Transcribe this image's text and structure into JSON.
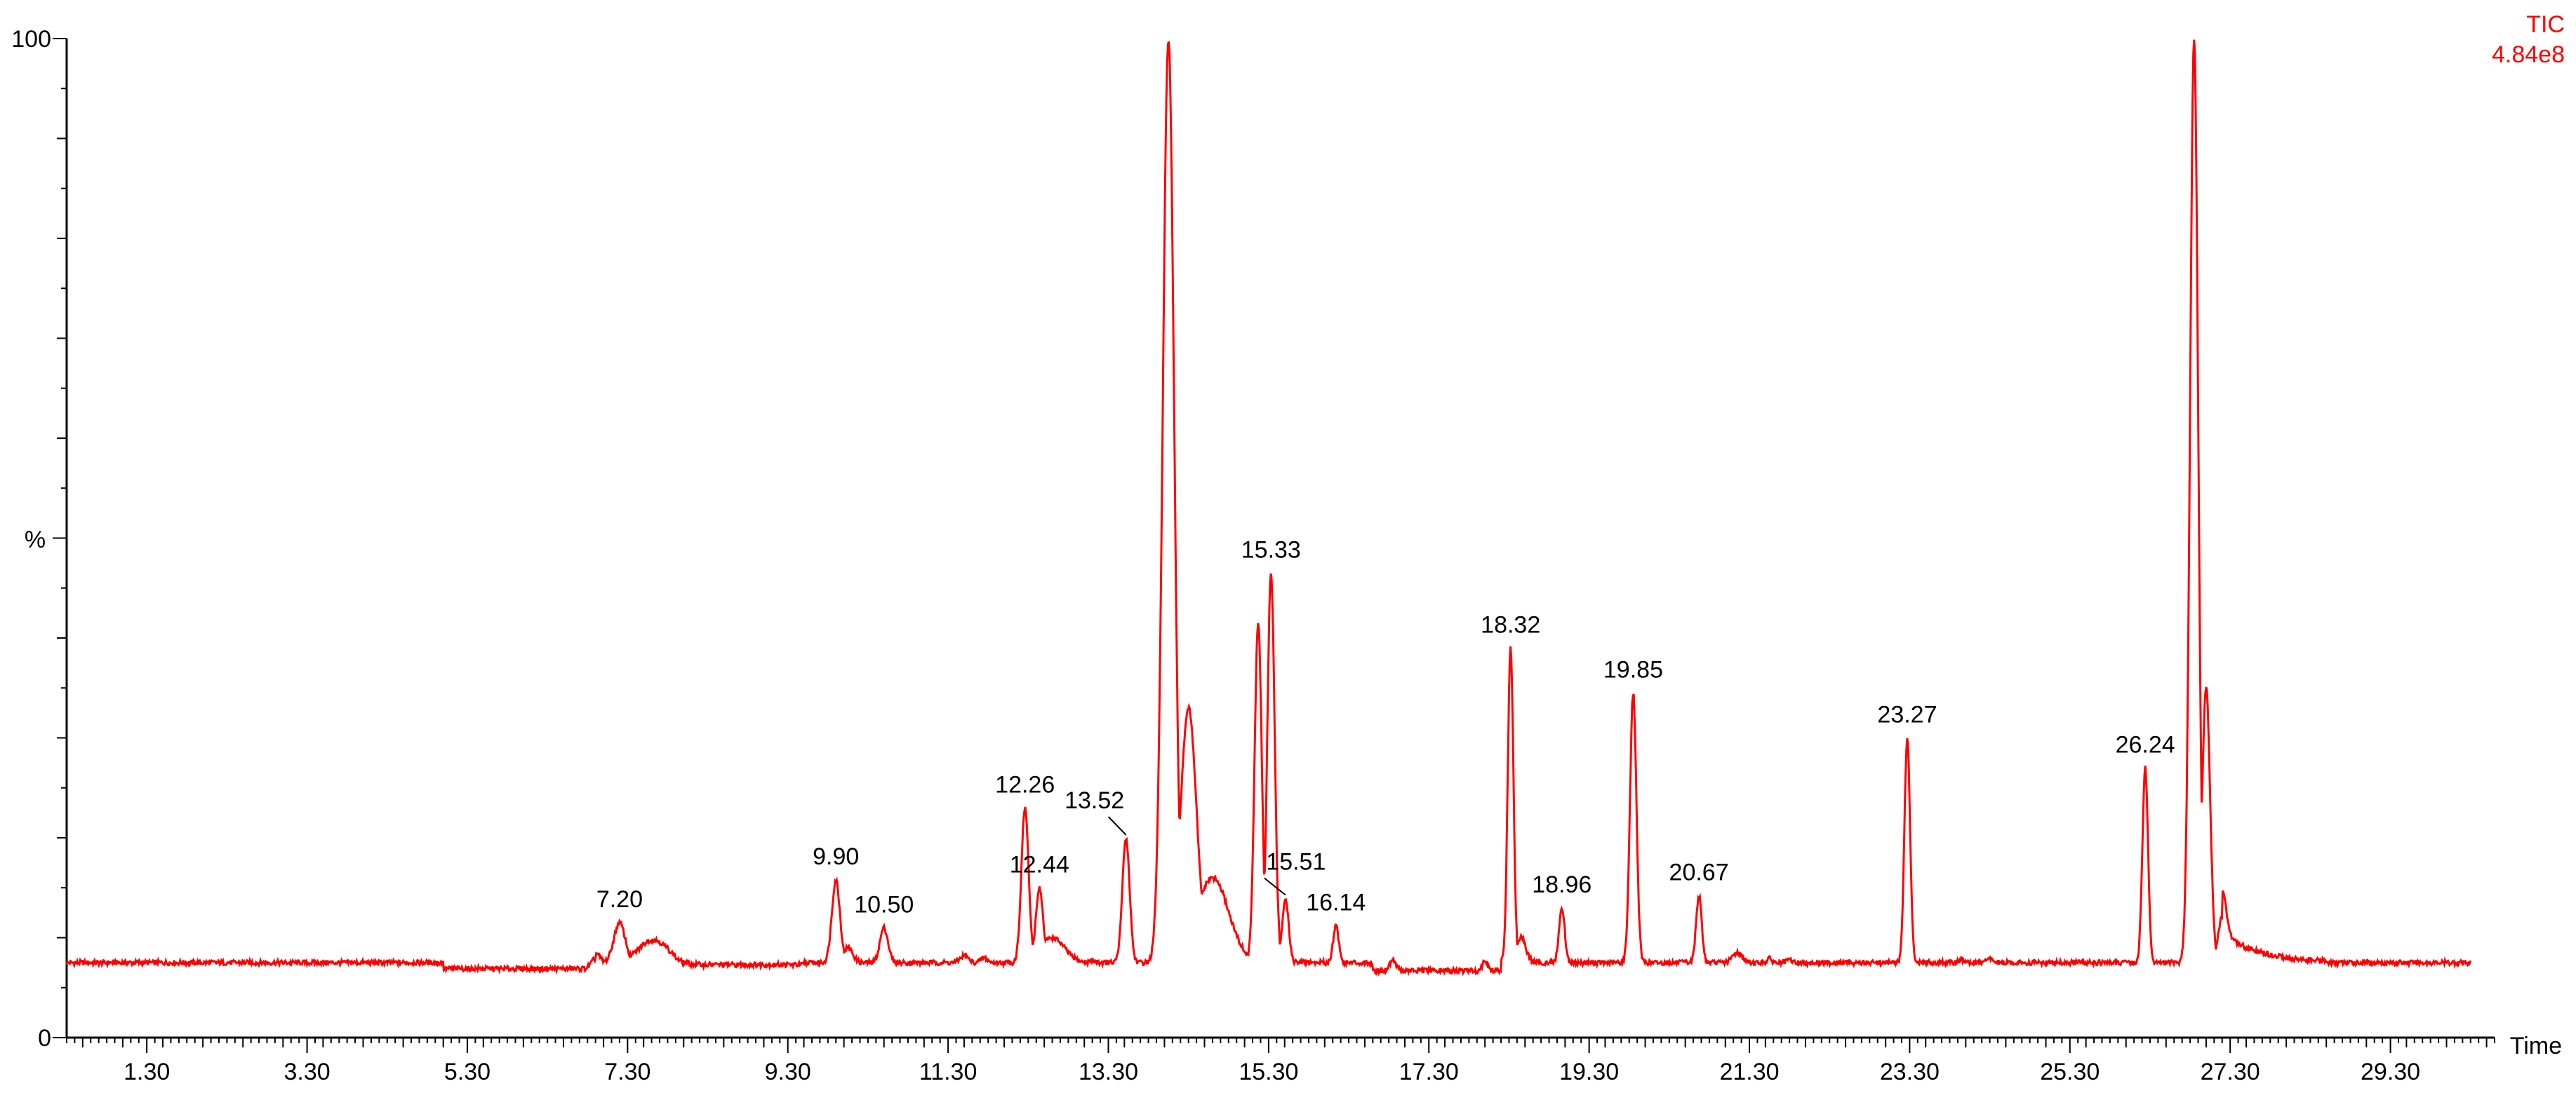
{
  "chart_data": {
    "type": "line",
    "trace_label": "TIC",
    "intensity_label": "4.84e8",
    "ylabel": "%",
    "xlabel": "Time",
    "xlim": [
      0.3,
      30.6
    ],
    "ylim": [
      0,
      100
    ],
    "y_ticks": [
      "0",
      "100"
    ],
    "x_ticks": [
      1.3,
      3.3,
      5.3,
      7.3,
      9.3,
      11.3,
      13.3,
      15.3,
      17.3,
      19.3,
      21.3,
      23.3,
      25.3,
      27.3,
      29.3
    ],
    "x_tick_labels": [
      "1.30",
      "3.30",
      "5.30",
      "7.30",
      "9.30",
      "11.30",
      "13.30",
      "15.30",
      "17.30",
      "19.30",
      "21.30",
      "23.30",
      "25.30",
      "27.30",
      "29.30"
    ],
    "line_color": "#ff0000",
    "baseline": 7.5,
    "peaks": [
      {
        "t": 6.9,
        "h": 8.5,
        "w": 0.05
      },
      {
        "t": 7.2,
        "h": 11.5,
        "w": 0.07
      },
      {
        "t": 7.62,
        "h": 9.8,
        "w": 0.18
      },
      {
        "t": 9.9,
        "h": 15.8,
        "w": 0.05
      },
      {
        "t": 10.05,
        "h": 9.0,
        "w": 0.06
      },
      {
        "t": 10.5,
        "h": 11.0,
        "w": 0.05
      },
      {
        "t": 11.5,
        "h": 8.2,
        "w": 0.05
      },
      {
        "t": 11.75,
        "h": 8.0,
        "w": 0.04
      },
      {
        "t": 12.26,
        "h": 23.0,
        "w": 0.045
      },
      {
        "t": 12.44,
        "h": 15.0,
        "w": 0.045
      },
      {
        "t": 12.6,
        "h": 10.0,
        "w": 0.15
      },
      {
        "t": 13.1,
        "h": 7.7,
        "w": 0.04
      },
      {
        "t": 13.52,
        "h": 20.0,
        "w": 0.045
      },
      {
        "t": 14.05,
        "h": 100,
        "w": 0.07
      },
      {
        "t": 14.3,
        "h": 33.0,
        "w": 0.1
      },
      {
        "t": 14.6,
        "h": 16.0,
        "w": 0.2
      },
      {
        "t": 15.17,
        "h": 41.5,
        "w": 0.045
      },
      {
        "t": 15.33,
        "h": 46.5,
        "w": 0.045
      },
      {
        "t": 15.51,
        "h": 14.0,
        "w": 0.04
      },
      {
        "t": 15.75,
        "h": 7.6,
        "w": 0.04
      },
      {
        "t": 16.14,
        "h": 11.2,
        "w": 0.035
      },
      {
        "t": 16.5,
        "h": 7.5,
        "w": 0.04
      },
      {
        "t": 16.85,
        "h": 7.8,
        "w": 0.04
      },
      {
        "t": 18.0,
        "h": 7.8,
        "w": 0.03
      },
      {
        "t": 18.32,
        "h": 39.0,
        "w": 0.035
      },
      {
        "t": 18.45,
        "h": 10.0,
        "w": 0.06
      },
      {
        "t": 18.96,
        "h": 13.0,
        "w": 0.035
      },
      {
        "t": 19.85,
        "h": 34.5,
        "w": 0.04
      },
      {
        "t": 20.67,
        "h": 14.2,
        "w": 0.035
      },
      {
        "t": 21.15,
        "h": 8.5,
        "w": 0.06
      },
      {
        "t": 21.55,
        "h": 7.9,
        "w": 0.03
      },
      {
        "t": 21.8,
        "h": 7.8,
        "w": 0.03
      },
      {
        "t": 23.27,
        "h": 30.0,
        "w": 0.035
      },
      {
        "t": 23.95,
        "h": 7.8,
        "w": 0.04
      },
      {
        "t": 24.3,
        "h": 7.9,
        "w": 0.04
      },
      {
        "t": 26.24,
        "h": 27.0,
        "w": 0.035
      },
      {
        "t": 26.85,
        "h": 100,
        "w": 0.05
      },
      {
        "t": 27.0,
        "h": 35.0,
        "w": 0.05
      },
      {
        "t": 27.2,
        "h": 12.0,
        "w": 0.05
      }
    ],
    "peak_labels": [
      {
        "t": 7.2,
        "label": "7.20"
      },
      {
        "t": 9.9,
        "label": "9.90"
      },
      {
        "t": 10.5,
        "label": "10.50"
      },
      {
        "t": 12.26,
        "label": "12.26"
      },
      {
        "t": 12.44,
        "label": "12.44"
      },
      {
        "t": 13.52,
        "label": "13.52"
      },
      {
        "t": 15.33,
        "label": "15.33"
      },
      {
        "t": 15.51,
        "label": "15.51"
      },
      {
        "t": 16.14,
        "label": "16.14"
      },
      {
        "t": 18.32,
        "label": "18.32"
      },
      {
        "t": 18.96,
        "label": "18.96"
      },
      {
        "t": 19.85,
        "label": "19.85"
      },
      {
        "t": 20.67,
        "label": "20.67"
      },
      {
        "t": 23.27,
        "label": "23.27"
      },
      {
        "t": 26.24,
        "label": "26.24"
      }
    ]
  }
}
